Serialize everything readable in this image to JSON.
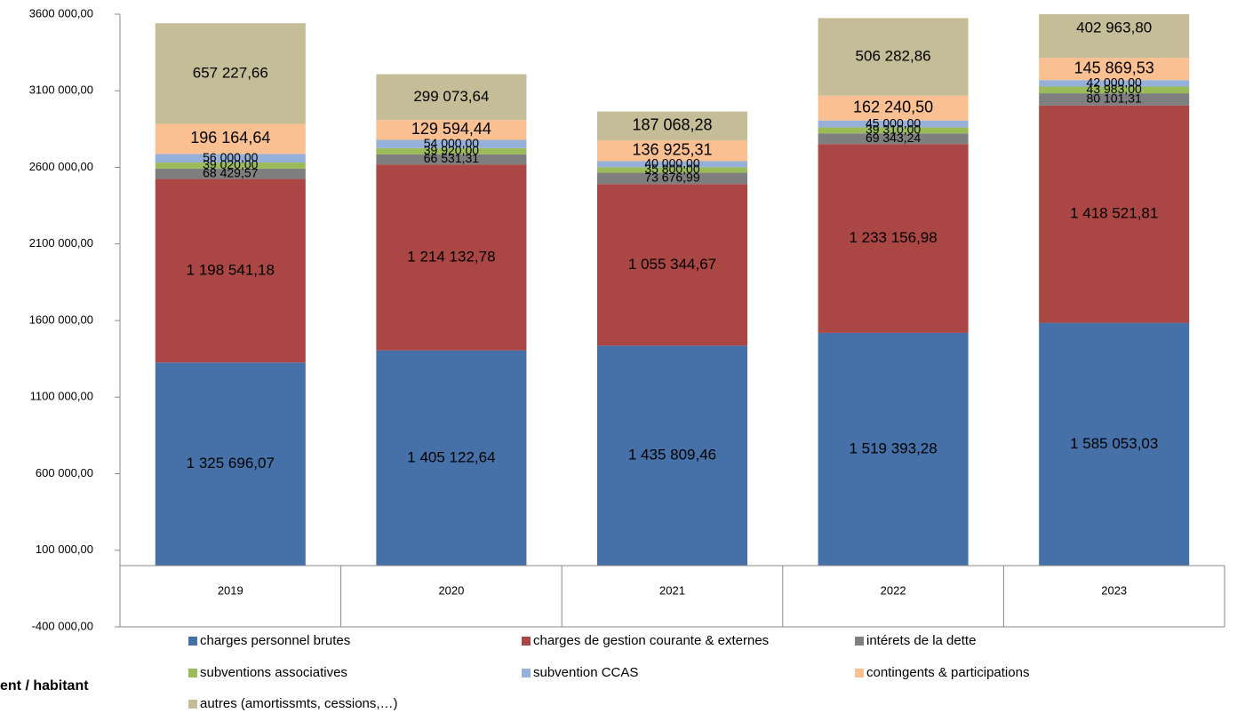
{
  "chart_data": {
    "type": "stacked_bar",
    "categories": [
      "2019",
      "2020",
      "2021",
      "2022",
      "2023"
    ],
    "series": [
      {
        "name": "charges personnel brutes",
        "color": "#4571a8",
        "values": [
          1325696.07,
          1405122.64,
          1435809.46,
          1519393.28,
          1585053.03
        ],
        "value_labels": [
          "1 325 696,07",
          "1 405 122,64",
          "1 435 809,46",
          "1 519 393,28",
          "1 585 053,03"
        ]
      },
      {
        "name": "charges de gestion courante & externes",
        "color": "#aa4644",
        "values": [
          1198541.18,
          1214132.78,
          1055344.67,
          1233156.98,
          1418521.81
        ],
        "value_labels": [
          "1 198 541,18",
          "1 214 132,78",
          "1 055 344,67",
          "1 233 156,98",
          "1 418 521,81"
        ]
      },
      {
        "name": "intérets de la dette",
        "color": "#7f7f7f",
        "values": [
          68429.57,
          66531.31,
          73676.99,
          69343.24,
          80101.31
        ],
        "value_labels": [
          "68 429,57",
          "66 531,31",
          "73 676,99",
          "69 343,24",
          "80 101,31"
        ]
      },
      {
        "name": "subventions associatives",
        "color": "#9bbb59",
        "values": [
          39020.0,
          39920.0,
          35800.0,
          39310.0,
          43983.0
        ],
        "value_labels": [
          "39 020,00",
          "39 920,00",
          "35 800,00",
          "39 310,00",
          "43 983,00"
        ]
      },
      {
        "name": "subvention CCAS",
        "color": "#95b0d9",
        "values": [
          56000,
          54000,
          40000,
          45000,
          42000
        ],
        "value_labels": [
          "56 000,00",
          "54 000,00",
          "40 000,00",
          "45 000,00",
          "42 000,00"
        ]
      },
      {
        "name": "contingents & participations",
        "color": "#fac092",
        "values": [
          196164.64,
          129594.44,
          136925.31,
          162240.5,
          145869.53
        ],
        "value_labels": [
          "196 164,64",
          "129 594,44",
          "136 925,31",
          "162 240,50",
          "145 869,53"
        ]
      },
      {
        "name": "autres (amortissmts, cessions,…)",
        "color": "#c4bd97",
        "values": [
          657227.66,
          299073.64,
          187068.28,
          506282.86,
          402963.8
        ],
        "value_labels": [
          "657 227,66",
          "299 073,64",
          "187 068,28",
          "506 282,86",
          "402 963,80"
        ]
      }
    ],
    "ylim": [
      -400000,
      3600000
    ],
    "yticks": [
      {
        "value": -400000,
        "label": "-400 000,00"
      },
      {
        "value": 100000,
        "label": "100 000,00"
      },
      {
        "value": 600000,
        "label": "600 000,00"
      },
      {
        "value": 1100000,
        "label": "1100 000,00"
      },
      {
        "value": 1600000,
        "label": "1600 000,00"
      },
      {
        "value": 2100000,
        "label": "2100 000,00"
      },
      {
        "value": 2600000,
        "label": "2600 000,00"
      },
      {
        "value": 3100000,
        "label": "3100 000,00"
      },
      {
        "value": 3600000,
        "label": "3600 000,00"
      }
    ],
    "footer_text": "ent / habitant"
  }
}
